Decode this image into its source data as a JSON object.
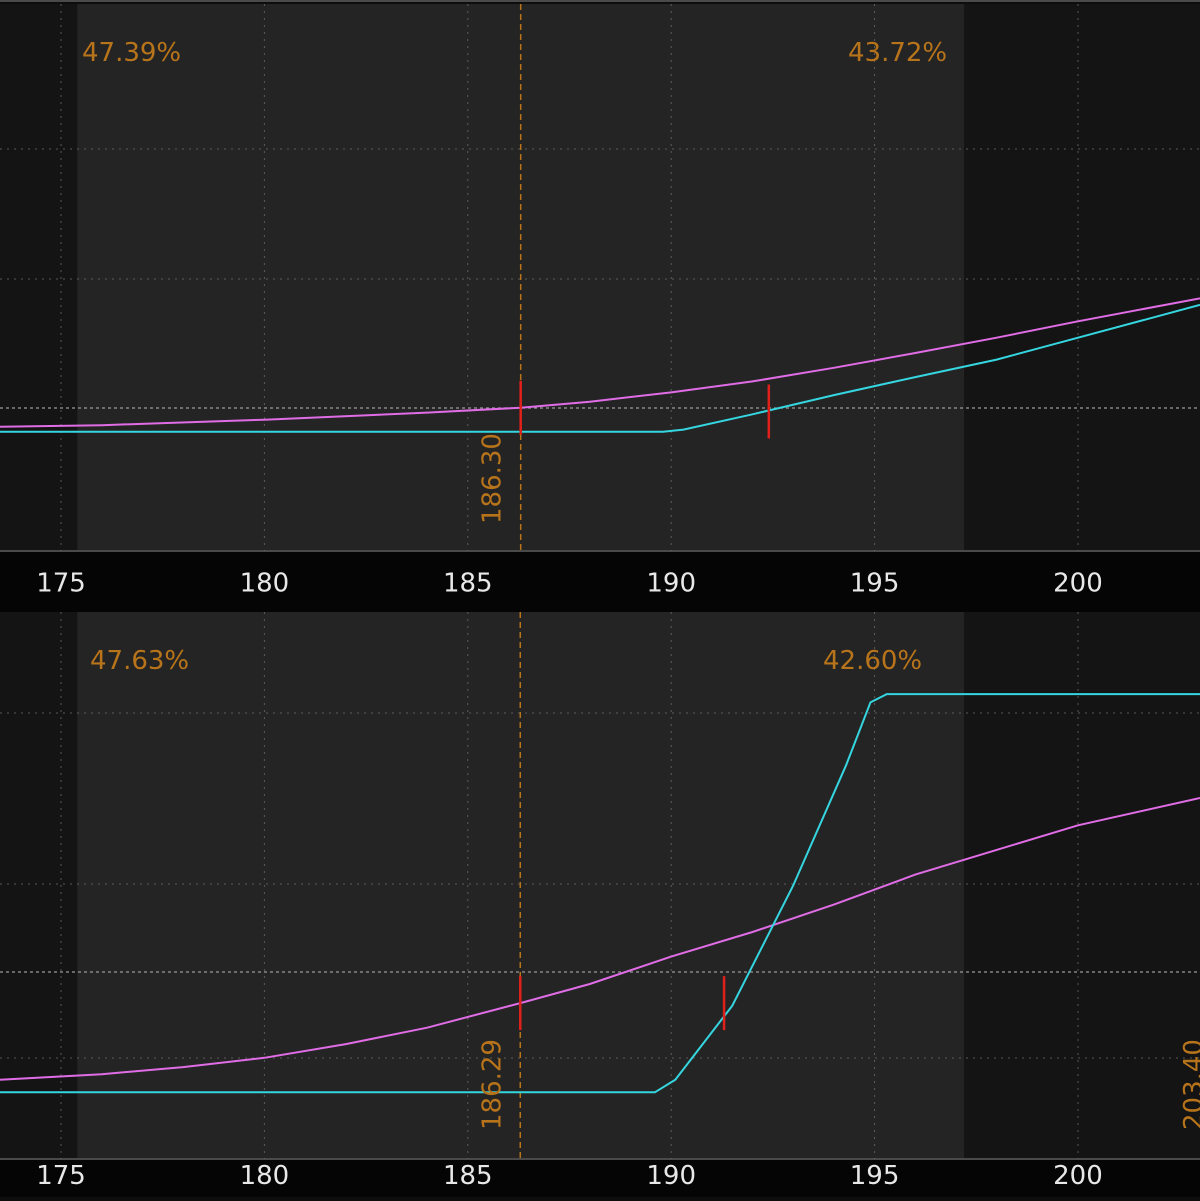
{
  "colors": {
    "background_outer": "#141414",
    "background_band": "#242424",
    "axis_bar": "#050505",
    "grid": "#6a6a6a",
    "annotation": "#b8741a",
    "series_magenta": "#e06ce6",
    "series_cyan": "#35d6e0",
    "marker": "#e0201a",
    "tick_text": "#e8e8e8"
  },
  "chart_data": [
    {
      "type": "line",
      "title": "",
      "xlabel": "",
      "ylabel": "",
      "xlim": [
        173.5,
        203
      ],
      "ylim": [
        0,
        1
      ],
      "x_ticks": [
        175,
        180,
        185,
        190,
        195,
        200
      ],
      "grid": true,
      "band_x": [
        175.4,
        197.2
      ],
      "annotations": {
        "left_pct": "47.39%",
        "right_pct": "43.72%",
        "price_label": "186.30",
        "price_x": 186.3
      },
      "series": [
        {
          "color_key": "series_magenta",
          "x": [
            173.5,
            176,
            180,
            184,
            186.3,
            188,
            190,
            192,
            194,
            196,
            198,
            200,
            203
          ],
          "y": [
            0.227,
            0.23,
            0.24,
            0.253,
            0.262,
            0.273,
            0.29,
            0.31,
            0.335,
            0.362,
            0.39,
            0.42,
            0.462
          ]
        },
        {
          "color_key": "series_cyan",
          "x": [
            173.5,
            185,
            189.8,
            190.3,
            192,
            194,
            196,
            198,
            200,
            203
          ],
          "y": [
            0.218,
            0.218,
            0.218,
            0.222,
            0.25,
            0.285,
            0.318,
            0.35,
            0.39,
            0.45
          ]
        }
      ],
      "markers": [
        {
          "x": 186.3,
          "y": 0.262
        },
        {
          "x": 192.4,
          "y": 0.255
        }
      ]
    },
    {
      "type": "line",
      "title": "",
      "xlabel": "",
      "ylabel": "",
      "xlim": [
        173.5,
        203
      ],
      "ylim": [
        0,
        1
      ],
      "x_ticks": [
        175,
        180,
        185,
        190,
        195,
        200
      ],
      "grid": true,
      "band_x": [
        175.4,
        197.2
      ],
      "annotations": {
        "left_pct": "47.63%",
        "right_pct": "42.60%",
        "price_label": "186.29",
        "price_x": 186.29,
        "edge_label": "203.40"
      },
      "series": [
        {
          "color_key": "series_magenta",
          "x": [
            173.5,
            176,
            178,
            180,
            182,
            184,
            186.29,
            188,
            190,
            192,
            194,
            196,
            198,
            200,
            203
          ],
          "y": [
            0.145,
            0.155,
            0.168,
            0.185,
            0.21,
            0.24,
            0.285,
            0.32,
            0.37,
            0.415,
            0.465,
            0.52,
            0.565,
            0.61,
            0.66
          ]
        },
        {
          "color_key": "series_cyan",
          "x": [
            173.5,
            189.6,
            190.1,
            191.5,
            193,
            194.3,
            194.9,
            195.3,
            203
          ],
          "y": [
            0.122,
            0.122,
            0.145,
            0.28,
            0.5,
            0.72,
            0.835,
            0.85,
            0.85
          ]
        }
      ],
      "markers": [
        {
          "x": 186.29,
          "y": 0.285
        },
        {
          "x": 191.3,
          "y": 0.285
        }
      ]
    }
  ]
}
